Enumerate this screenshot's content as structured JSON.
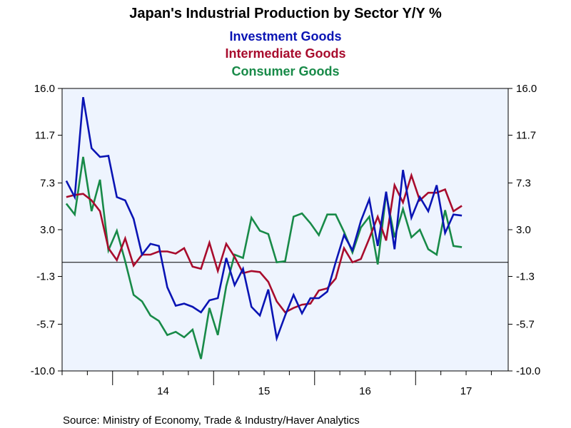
{
  "chart_data": {
    "type": "line",
    "title": "Japan's Industrial Production by Sector Y/Y %",
    "source": "Source:  Ministry of Economy, Trade & Industry/Haver Analytics",
    "ylim": [
      -10.0,
      16.0
    ],
    "y_ticks": [
      "16.0",
      "11.7",
      "7.3",
      "3.0",
      "-1.3",
      "-5.7",
      "-10.0"
    ],
    "x_ticks": [
      "14",
      "15",
      "16",
      "17"
    ],
    "x_range": [
      "2013-07",
      "2017-11"
    ],
    "zero_line": true,
    "grid": false,
    "colors": {
      "plot_background": "#eef4fe",
      "outer_background": "#ffffff"
    },
    "series": [
      {
        "name": "Investment Goods",
        "color": "#0a14b4",
        "start": "2013-07",
        "values": [
          7.5,
          6.0,
          15.2,
          10.5,
          9.7,
          9.8,
          6.0,
          5.7,
          4.0,
          0.7,
          1.7,
          1.5,
          -2.3,
          -4.0,
          -3.8,
          -4.1,
          -4.6,
          -3.5,
          -3.3,
          0.4,
          -2.1,
          -0.6,
          -4.1,
          -4.9,
          -2.5,
          -7.0,
          -4.9,
          -3.0,
          -4.7,
          -3.3,
          -3.3,
          -2.7,
          0.0,
          2.5,
          1.1,
          3.8,
          5.8,
          1.5,
          6.5,
          1.2,
          8.5,
          4.1,
          6.0,
          4.7,
          7.1,
          2.7,
          4.4,
          4.3
        ]
      },
      {
        "name": "Intermediate Goods",
        "color": "#a80c2d",
        "start": "2013-07",
        "values": [
          6.0,
          6.2,
          6.3,
          5.7,
          4.7,
          1.3,
          0.2,
          2.2,
          -0.3,
          0.7,
          0.7,
          1.0,
          1.0,
          0.8,
          1.3,
          -0.4,
          -0.6,
          1.8,
          -0.8,
          1.7,
          0.5,
          -1.0,
          -0.8,
          -0.9,
          -1.8,
          -3.6,
          -4.6,
          -4.2,
          -3.9,
          -3.8,
          -2.6,
          -2.4,
          -1.5,
          1.3,
          0.0,
          0.3,
          2.2,
          4.2,
          2.0,
          7.1,
          5.5,
          8.0,
          5.7,
          6.4,
          6.4,
          6.7,
          4.7,
          5.2
        ]
      },
      {
        "name": "Consumer Goods",
        "color": "#188a48",
        "start": "2013-07",
        "values": [
          5.4,
          4.4,
          9.7,
          4.7,
          7.6,
          1.1,
          2.9,
          0.1,
          -3.0,
          -3.6,
          -4.9,
          -5.4,
          -6.7,
          -6.4,
          -6.9,
          -6.2,
          -8.9,
          -4.2,
          -6.7,
          -2.2,
          0.7,
          0.4,
          4.1,
          2.9,
          2.6,
          0.0,
          0.1,
          4.2,
          4.5,
          3.6,
          2.5,
          4.4,
          4.4,
          2.8,
          0.9,
          3.2,
          4.2,
          -0.2,
          6.3,
          2.3,
          4.9,
          2.3,
          3.0,
          1.2,
          0.7,
          4.8,
          1.5,
          1.4
        ]
      }
    ]
  }
}
